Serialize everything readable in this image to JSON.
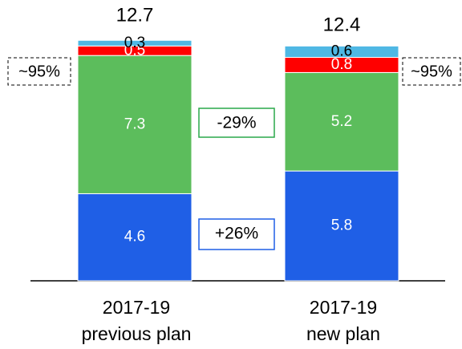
{
  "chart_data": {
    "type": "stacked_bar",
    "categories": [
      [
        "2017-19",
        "previous plan"
      ],
      [
        "2017-19",
        "new plan"
      ]
    ],
    "series": [
      {
        "color": "#1f5fe6",
        "label_color": "#ffffff",
        "values": [
          4.6,
          5.8
        ]
      },
      {
        "color": "#5cbd5c",
        "label_color": "#ffffff",
        "values": [
          7.3,
          5.2
        ]
      },
      {
        "color": "#ff0000",
        "label_color": "#ffffff",
        "values": [
          0.5,
          0.8
        ]
      },
      {
        "color": "#4fb8e4",
        "label_color": "#000000",
        "values": [
          0.3,
          0.6
        ]
      }
    ],
    "totals": [
      12.7,
      12.4
    ],
    "annotations": {
      "share_left": "~95%",
      "share_right": "~95%",
      "green_change": "-29%",
      "blue_change": "+26%"
    }
  }
}
